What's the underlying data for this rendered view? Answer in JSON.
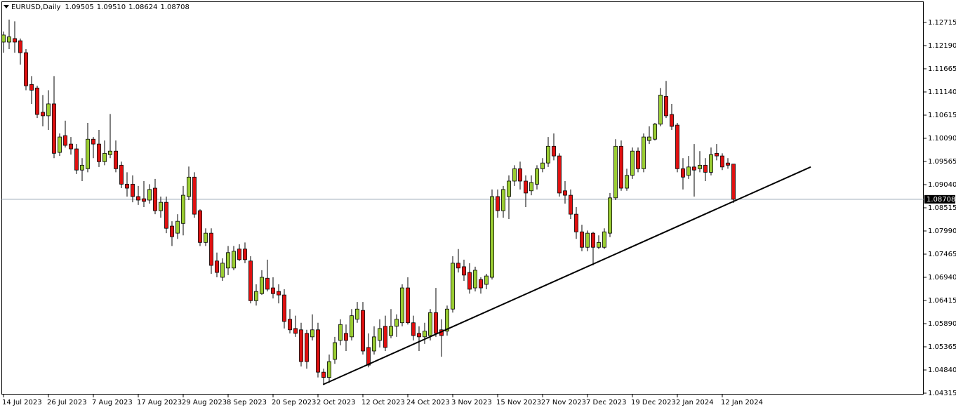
{
  "chart_data": {
    "type": "candlestick",
    "title": "EURUSD,Daily",
    "header_values": [
      "1.09505",
      "1.09510",
      "1.08624",
      "1.08708"
    ],
    "up_color": "#9acd32",
    "down_color": "#e01010",
    "ylim": [
      1.04283,
      1.13192
    ],
    "yticks": [
      {
        "value": 1.12715,
        "label": "1.12715"
      },
      {
        "value": 1.1219,
        "label": "1.12190"
      },
      {
        "value": 1.11665,
        "label": "1.11665"
      },
      {
        "value": 1.1114,
        "label": "1.11140"
      },
      {
        "value": 1.10615,
        "label": "1.10615"
      },
      {
        "value": 1.1009,
        "label": "1.10090"
      },
      {
        "value": 1.09565,
        "label": "1.09565"
      },
      {
        "value": 1.0904,
        "label": "1.09040"
      },
      {
        "value": 1.08515,
        "label": "1.08515"
      },
      {
        "value": 1.0799,
        "label": "1.07990"
      },
      {
        "value": 1.07465,
        "label": "1.07465"
      },
      {
        "value": 1.0694,
        "label": "1.06940"
      },
      {
        "value": 1.06415,
        "label": "1.06415"
      },
      {
        "value": 1.0589,
        "label": "1.05890"
      },
      {
        "value": 1.05365,
        "label": "1.05365"
      },
      {
        "value": 1.0484,
        "label": "1.04840"
      },
      {
        "value": 1.04315,
        "label": "1.04315"
      }
    ],
    "current_price": {
      "value": 1.08708,
      "label": "1.08708"
    },
    "trendline": {
      "x": [
        56.9,
        143.75
      ],
      "y": [
        1.0451,
        1.0944
      ]
    },
    "categories": [
      "14 Jul 2023",
      null,
      null,
      null,
      null,
      null,
      null,
      null,
      "26 Jul 2023",
      null,
      null,
      null,
      null,
      null,
      null,
      null,
      "7 Aug 2023",
      null,
      null,
      null,
      null,
      null,
      null,
      null,
      "17 Aug 2023",
      null,
      null,
      null,
      null,
      null,
      null,
      null,
      "29 Aug 2023",
      null,
      null,
      null,
      null,
      null,
      null,
      null,
      "8 Sep 2023",
      null,
      null,
      null,
      null,
      null,
      null,
      null,
      "20 Sep 2023",
      null,
      null,
      null,
      null,
      null,
      null,
      null,
      "2 Oct 2023",
      null,
      null,
      null,
      null,
      null,
      null,
      null,
      "12 Oct 2023",
      null,
      null,
      null,
      null,
      null,
      null,
      null,
      "24 Oct 2023",
      null,
      null,
      null,
      null,
      null,
      null,
      null,
      "3 Nov 2023",
      null,
      null,
      null,
      null,
      null,
      null,
      null,
      "15 Nov 2023",
      null,
      null,
      null,
      null,
      null,
      null,
      null,
      "27 Nov 2023",
      null,
      null,
      null,
      null,
      null,
      null,
      null,
      "7 Dec 2023",
      null,
      null,
      null,
      null,
      null,
      null,
      null,
      "19 Dec 2023",
      null,
      null,
      null,
      null,
      null,
      null,
      null,
      "2 Jan 2024",
      null,
      null,
      null,
      null,
      null,
      null,
      null,
      "12 Jan 2024",
      null,
      null
    ],
    "open": [
      1.1227,
      1.1227,
      1.1235,
      1.123,
      1.1203,
      1.1131,
      1.1123,
      1.1068,
      1.106,
      1.1087,
      1.0977,
      1.1015,
      1.0996,
      1.0985,
      1.0937,
      1.094,
      1.1007,
      1.0996,
      1.0956,
      1.0972,
      1.098,
      1.0948,
      1.0905,
      1.0905,
      1.0877,
      1.0872,
      1.0869,
      1.0896,
      1.0845,
      1.0864,
      1.081,
      1.0794,
      1.0816,
      1.0877,
      1.0921,
      1.0845,
      1.0773,
      1.0794,
      1.0731,
      1.0694,
      1.0715,
      1.0715,
      1.0758,
      1.0758,
      1.0731,
      1.0641,
      1.0657,
      1.0692,
      1.067,
      1.0662,
      1.0654,
      1.0599,
      1.0578,
      1.0575,
      1.0567,
      1.0559,
      1.0575,
      1.0479,
      1.0467,
      1.0508,
      1.0551,
      1.0567,
      1.0559,
      1.0599,
      1.0619,
      1.0535,
      1.0527,
      1.0551,
      1.0583,
      1.0562,
      1.0583,
      1.0591,
      1.067,
      1.0591,
      1.0567,
      1.0559,
      1.0562,
      1.0614,
      1.0575,
      1.0572,
      1.0622,
      1.0726,
      1.0718,
      1.0705,
      1.067,
      1.0689,
      1.0678,
      1.0694,
      1.0877,
      1.0845,
      1.0877,
      1.0912,
      1.094,
      1.0912,
      1.089,
      1.0905,
      1.094,
      1.0953,
      1.0991,
      1.0969,
      1.089,
      1.088,
      1.0837,
      1.0797,
      1.0762,
      1.0794,
      1.0762,
      1.0762,
      1.0794,
      1.0874,
      1.0991,
      1.0896,
      1.0925,
      1.098,
      1.094,
      1.1004,
      1.1007,
      1.1041,
      1.1104,
      1.1063,
      1.1039,
      1.094,
      1.0925,
      1.0944,
      1.094,
      1.0948,
      1.0932,
      1.0975,
      1.0969,
      1.0953,
      1.09505
    ],
    "high": [
      1.1251,
      1.1278,
      1.1274,
      1.1235,
      1.1211,
      1.115,
      1.1128,
      1.1107,
      1.1118,
      1.115,
      1.102,
      1.1049,
      1.1012,
      1.0996,
      1.0964,
      1.1044,
      1.1012,
      1.1028,
      1.1004,
      1.1064,
      1.1004,
      1.0956,
      1.0932,
      1.0925,
      1.0901,
      1.0912,
      1.0905,
      1.0917,
      1.0877,
      1.0877,
      1.0821,
      1.0837,
      1.0901,
      1.0945,
      1.0932,
      1.0848,
      1.0805,
      1.0805,
      1.075,
      1.0737,
      1.0765,
      1.0765,
      1.0769,
      1.0773,
      1.0742,
      1.0678,
      1.071,
      1.0734,
      1.0694,
      1.0678,
      1.0667,
      1.0622,
      1.0607,
      1.0591,
      1.0575,
      1.061,
      1.0591,
      1.0487,
      1.0519,
      1.0559,
      1.0599,
      1.0587,
      1.0622,
      1.0638,
      1.0638,
      1.0567,
      1.0583,
      1.0599,
      1.0607,
      1.0622,
      1.061,
      1.0678,
      1.0694,
      1.0607,
      1.0583,
      1.0591,
      1.0622,
      1.067,
      1.0599,
      1.063,
      1.0742,
      1.0758,
      1.0734,
      1.0726,
      1.0718,
      1.0694,
      1.0702,
      1.0893,
      1.0893,
      1.0901,
      1.0925,
      1.0948,
      1.0956,
      1.0925,
      1.0925,
      1.0948,
      1.0964,
      1.1012,
      1.102,
      1.0975,
      1.0912,
      1.0893,
      1.0853,
      1.0813,
      1.08,
      1.0797,
      1.0789,
      1.0805,
      1.0885,
      1.1007,
      1.1004,
      1.094,
      1.0988,
      1.0988,
      1.102,
      1.1036,
      1.1044,
      1.1123,
      1.1139,
      1.1087,
      1.1044,
      1.0964,
      1.0969,
      1.0996,
      1.098,
      1.0964,
      1.0988,
      1.0996,
      1.0975,
      1.0964,
      1.0951
    ],
    "low": [
      1.1203,
      1.1211,
      1.1203,
      1.1176,
      1.1118,
      1.1087,
      1.1055,
      1.1036,
      1.1028,
      1.0964,
      1.0969,
      1.0988,
      1.0972,
      1.0928,
      1.0912,
      1.0932,
      1.0964,
      1.0944,
      1.0948,
      1.0964,
      1.0932,
      1.0896,
      1.0877,
      1.0864,
      1.0858,
      1.0853,
      1.0861,
      1.0837,
      1.0829,
      1.0794,
      1.0765,
      1.0781,
      1.0789,
      1.0869,
      1.0829,
      1.0765,
      1.0765,
      1.0702,
      1.0694,
      1.0686,
      1.0699,
      1.071,
      1.0731,
      1.0726,
      1.0635,
      1.063,
      1.0654,
      1.0662,
      1.0646,
      1.0635,
      1.0578,
      1.0567,
      1.0559,
      1.0492,
      1.0487,
      1.0551,
      1.0467,
      1.0451,
      1.0455,
      1.0498,
      1.054,
      1.0527,
      1.0551,
      1.0591,
      1.0519,
      1.049,
      1.0519,
      1.0535,
      1.0527,
      1.0556,
      1.0559,
      1.0583,
      1.0587,
      1.0551,
      1.0527,
      1.0543,
      1.0551,
      1.0559,
      1.0514,
      1.0562,
      1.0614,
      1.0705,
      1.0686,
      1.0657,
      1.0662,
      1.0657,
      1.0667,
      1.0689,
      1.0829,
      1.0829,
      1.0826,
      1.0901,
      1.0893,
      1.0853,
      1.088,
      1.0893,
      1.0932,
      1.0944,
      1.0959,
      1.0877,
      1.0861,
      1.0826,
      1.0781,
      1.0753,
      1.0753,
      1.0721,
      1.0758,
      1.0758,
      1.0785,
      1.0869,
      1.089,
      1.089,
      1.0917,
      1.0932,
      1.0932,
      1.0996,
      1.1004,
      1.1036,
      1.1055,
      1.1028,
      1.0932,
      1.0893,
      1.0917,
      1.0877,
      1.0932,
      1.0912,
      1.0925,
      1.0959,
      1.0937,
      1.094,
      1.08624
    ],
    "close": [
      1.1243,
      1.1239,
      1.1227,
      1.1203,
      1.1128,
      1.1118,
      1.1063,
      1.106,
      1.1087,
      1.0975,
      1.1012,
      1.0993,
      1.0985,
      1.0937,
      1.0948,
      1.1007,
      1.0996,
      1.0956,
      1.0975,
      1.098,
      1.094,
      1.0905,
      1.0896,
      1.0877,
      1.0869,
      1.0866,
      1.0893,
      1.0845,
      1.0864,
      1.0805,
      1.0786,
      1.0821,
      1.088,
      1.0921,
      1.0837,
      1.0773,
      1.0794,
      1.0721,
      1.0705,
      1.0726,
      1.075,
      1.0753,
      1.0734,
      1.0734,
      1.0641,
      1.0662,
      1.0694,
      1.0667,
      1.0657,
      1.0654,
      1.0594,
      1.0575,
      1.0567,
      1.0503,
      1.0503,
      1.0575,
      1.0479,
      1.0467,
      1.0503,
      1.0546,
      1.0587,
      1.0551,
      1.0607,
      1.0622,
      1.0527,
      1.0495,
      1.0559,
      1.0578,
      1.0535,
      1.0583,
      1.0599,
      1.067,
      1.0591,
      1.0562,
      1.0559,
      1.0572,
      1.0614,
      1.0567,
      1.0562,
      1.0622,
      1.0726,
      1.0715,
      1.0699,
      1.0667,
      1.071,
      1.067,
      1.0697,
      1.0877,
      1.0845,
      1.0893,
      1.0912,
      1.094,
      1.0912,
      1.0885,
      1.0909,
      1.094,
      1.0953,
      1.0991,
      1.0969,
      1.0885,
      1.088,
      1.0837,
      1.0797,
      1.0762,
      1.0794,
      1.0762,
      1.0773,
      1.0797,
      1.0874,
      1.0991,
      1.0896,
      1.0925,
      1.098,
      1.094,
      1.1012,
      1.1012,
      1.1041,
      1.1107,
      1.106,
      1.1036,
      1.094,
      1.0921,
      1.0944,
      1.0937,
      1.0948,
      1.0932,
      1.0972,
      1.0969,
      1.0944,
      1.0948,
      1.08708
    ]
  }
}
